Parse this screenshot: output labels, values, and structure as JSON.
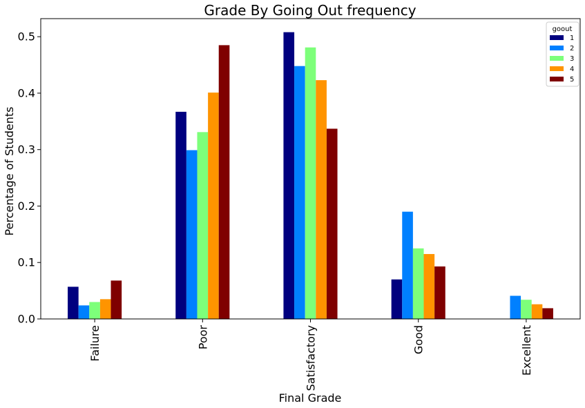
{
  "chart_data": {
    "type": "bar",
    "title": "Grade By Going Out frequency",
    "xlabel": "Final Grade",
    "ylabel": "Percentage of Students",
    "categories": [
      "Failure",
      "Poor",
      "Satisfactory",
      "Good",
      "Excellent"
    ],
    "ylim": [
      0,
      0.532
    ],
    "yticks": [
      "0.0",
      "0.1",
      "0.2",
      "0.3",
      "0.4",
      "0.5"
    ],
    "grid": false,
    "legend": {
      "title": "goout",
      "placement": "top-right"
    },
    "series": [
      {
        "name": "1",
        "color": "#00007f",
        "values": [
          0.057,
          0.367,
          0.508,
          0.07,
          0.0
        ]
      },
      {
        "name": "2",
        "color": "#0080ff",
        "values": [
          0.024,
          0.299,
          0.448,
          0.19,
          0.041
        ]
      },
      {
        "name": "3",
        "color": "#7dff7a",
        "values": [
          0.03,
          0.331,
          0.481,
          0.125,
          0.034
        ]
      },
      {
        "name": "4",
        "color": "#ff9400",
        "values": [
          0.035,
          0.401,
          0.423,
          0.115,
          0.026
        ]
      },
      {
        "name": "5",
        "color": "#7f0000",
        "values": [
          0.068,
          0.485,
          0.337,
          0.093,
          0.019
        ]
      }
    ]
  }
}
